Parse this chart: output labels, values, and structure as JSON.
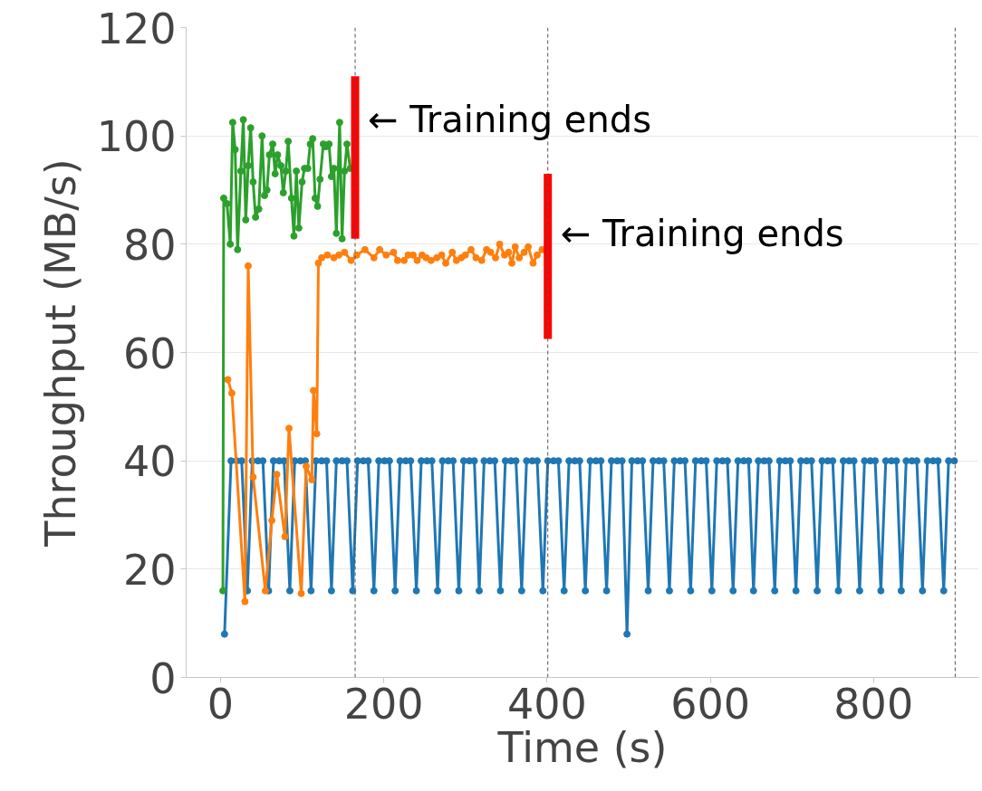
{
  "chart_data": {
    "type": "line",
    "xlabel": "Time (s)",
    "ylabel": "Throughput (MB/s)",
    "xlim": [
      -42,
      929
    ],
    "ylim": [
      0,
      120
    ],
    "xticks": [
      0,
      200,
      400,
      600,
      800
    ],
    "yticks": [
      0,
      20,
      40,
      60,
      80,
      100,
      120
    ],
    "grid": "y",
    "marker": "circle",
    "line_style": "solid",
    "series": [
      {
        "color": "#1f77b4",
        "x": [
          5,
          13,
          20,
          26,
          33,
          39,
          46,
          52,
          59,
          65,
          72,
          78,
          85,
          91,
          98,
          104,
          111,
          117,
          124,
          130,
          136,
          142,
          149,
          155,
          162,
          168,
          175,
          181,
          188,
          194,
          201,
          207,
          214,
          220,
          227,
          233,
          240,
          246,
          253,
          259,
          266,
          272,
          279,
          285,
          292,
          298,
          305,
          311,
          317,
          323,
          330,
          336,
          343,
          349,
          356,
          362,
          369,
          375,
          382,
          388,
          395,
          401,
          408,
          414,
          421,
          427,
          434,
          440,
          447,
          453,
          460,
          466,
          473,
          479,
          486,
          492,
          498,
          504,
          511,
          517,
          524,
          530,
          537,
          543,
          550,
          556,
          563,
          569,
          576,
          582,
          589,
          595,
          602,
          608,
          615,
          621,
          628,
          634,
          641,
          647,
          653,
          659,
          666,
          672,
          679,
          685,
          692,
          698,
          705,
          711,
          718,
          724,
          731,
          737,
          744,
          750,
          757,
          763,
          770,
          776,
          783,
          789,
          796,
          802,
          809,
          815,
          822,
          828,
          834,
          840,
          847,
          853,
          860,
          866,
          873,
          879,
          886,
          892,
          899
        ],
        "values": [
          8,
          40,
          40,
          40,
          16,
          40,
          40,
          40,
          16,
          40,
          40,
          40,
          16,
          40,
          40,
          40,
          16,
          40,
          40,
          40,
          16,
          40,
          40,
          40,
          16,
          40,
          40,
          40,
          16,
          40,
          40,
          40,
          16,
          40,
          40,
          40,
          16,
          40,
          40,
          40,
          16,
          40,
          40,
          40,
          16,
          40,
          40,
          40,
          16,
          40,
          40,
          40,
          16,
          40,
          40,
          40,
          16,
          40,
          40,
          40,
          16,
          40,
          40,
          40,
          16,
          40,
          40,
          40,
          16,
          40,
          40,
          40,
          16,
          40,
          40,
          40,
          8,
          40,
          40,
          40,
          16,
          40,
          40,
          40,
          16,
          40,
          40,
          40,
          16,
          40,
          40,
          40,
          16,
          40,
          40,
          40,
          16,
          40,
          40,
          40,
          16,
          40,
          40,
          40,
          16,
          40,
          40,
          40,
          16,
          40,
          40,
          40,
          16,
          40,
          40,
          40,
          16,
          40,
          40,
          40,
          16,
          40,
          40,
          40,
          16,
          40,
          40,
          40,
          16,
          40,
          40,
          40,
          16,
          40,
          40,
          40,
          16,
          40,
          40
        ]
      },
      {
        "color": "#ff7f0e",
        "x": [
          9,
          14,
          30,
          34,
          40,
          55,
          63,
          69,
          79,
          84,
          99,
          105,
          112,
          114,
          118,
          120,
          124,
          131,
          139,
          145,
          152,
          160,
          167,
          177,
          188,
          195,
          203,
          212,
          217,
          225,
          230,
          236,
          241,
          247,
          252,
          258,
          265,
          271,
          276,
          284,
          289,
          295,
          300,
          307,
          313,
          320,
          326,
          331,
          337,
          342,
          348,
          353,
          357,
          361,
          366,
          372,
          377,
          383,
          388,
          394,
          401
        ],
        "values": [
          55,
          52.5,
          14,
          76,
          37,
          16,
          29,
          37.5,
          26,
          46,
          15.5,
          39,
          36.5,
          53,
          45,
          76.5,
          77.5,
          78,
          77.5,
          78,
          78.5,
          77,
          78,
          79,
          77.5,
          79,
          78,
          78.5,
          77,
          77,
          78,
          78,
          77,
          78,
          77.5,
          77,
          77.5,
          78,
          76.5,
          78.5,
          77,
          77.5,
          78,
          79,
          77.5,
          77,
          79,
          78.5,
          77.5,
          80,
          78,
          78.5,
          76.5,
          79.5,
          77.5,
          78.5,
          79.5,
          76.5,
          78,
          79,
          78
        ]
      },
      {
        "color": "#2ca02c",
        "x": [
          3,
          4,
          8,
          12,
          15,
          18,
          21,
          25,
          28,
          31,
          34,
          37,
          40,
          43,
          47,
          51,
          54,
          57,
          60,
          64,
          67,
          70,
          74,
          77,
          80,
          83,
          87,
          90,
          93,
          96,
          100,
          103,
          107,
          110,
          113,
          116,
          119,
          122,
          126,
          129,
          133,
          136,
          139,
          142,
          146,
          149,
          152,
          155,
          159
        ],
        "values": [
          16,
          88.5,
          87.5,
          80,
          102.5,
          97.5,
          79,
          93.5,
          103,
          84.5,
          94.5,
          101.5,
          91.5,
          85,
          86.5,
          100,
          89,
          90,
          96.5,
          98.5,
          93,
          96.5,
          94.5,
          89.5,
          93.5,
          99,
          88.5,
          81.5,
          93.5,
          83,
          91.5,
          94,
          94,
          98.5,
          99.5,
          88.5,
          87,
          92,
          98.5,
          98,
          98.5,
          92.5,
          94,
          82,
          102.5,
          81,
          93.5,
          98.5,
          94
        ]
      },
      {
        "color": "#ff0000",
        "type": "line",
        "marker": "none",
        "x": [
          165,
          165
        ],
        "values": [
          81,
          111
        ]
      },
      {
        "color": "#ff0000",
        "type": "line",
        "marker": "none",
        "x": [
          401,
          401
        ],
        "values": [
          62.5,
          93
        ]
      }
    ],
    "ref_lines": [
      {
        "axis": "x",
        "value": 165,
        "color": "#555555",
        "line_style": "dashed"
      },
      {
        "axis": "x",
        "value": 401,
        "color": "#555555",
        "line_style": "dashed"
      },
      {
        "axis": "x",
        "value": 900,
        "color": "#555555",
        "line_style": "dashed"
      }
    ],
    "annotations": [
      {
        "text": "← Training ends",
        "x": 165,
        "y": 103
      },
      {
        "text": "← Training ends",
        "x": 401,
        "y": 82
      }
    ]
  }
}
